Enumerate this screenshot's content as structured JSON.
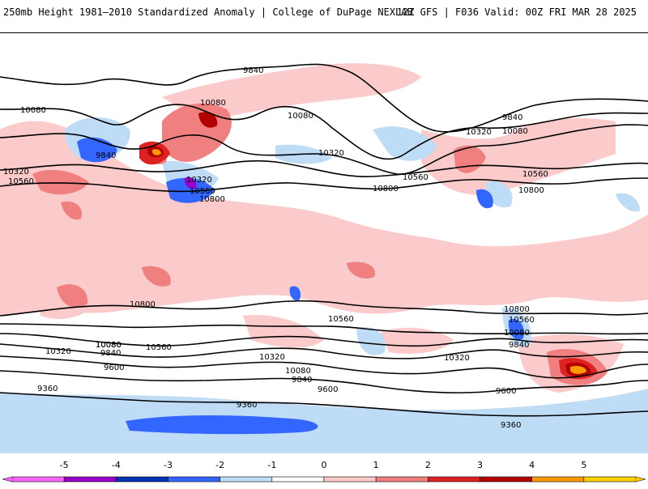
{
  "header": {
    "title_left": "250mb Height 1981–2010 Standardized Anomaly | College of DuPage NEXLAB",
    "title_right": "12Z GFS | F036 Valid: 00Z FRI MAR 28 2025"
  },
  "map": {
    "contour_labels": [
      "9840",
      "10080",
      "10320",
      "10560",
      "9840",
      "10080",
      "10320",
      "10560",
      "10800",
      "10080",
      "10320",
      "10560",
      "10800",
      "9840",
      "10080",
      "10320",
      "10560",
      "10800",
      "10800",
      "10560",
      "10080",
      "10560",
      "10320",
      "10080",
      "9840",
      "9600",
      "10800",
      "10560",
      "10080",
      "9840",
      "10320",
      "10080",
      "9840",
      "9600",
      "9360",
      "9360",
      "10320",
      "9600",
      "9360"
    ]
  },
  "colorbar": {
    "labels": [
      "-5",
      "-4",
      "-3",
      "-2",
      "-1",
      "0",
      "1",
      "2",
      "3",
      "4",
      "5"
    ],
    "colors": [
      "#ff66ff",
      "#9900cc",
      "#0033b3",
      "#3366ff",
      "#bfdcf7",
      "#ffffff",
      "#fbc8c8",
      "#f08080",
      "#dd2222",
      "#b30000",
      "#ff9900",
      "#ffd000"
    ]
  }
}
